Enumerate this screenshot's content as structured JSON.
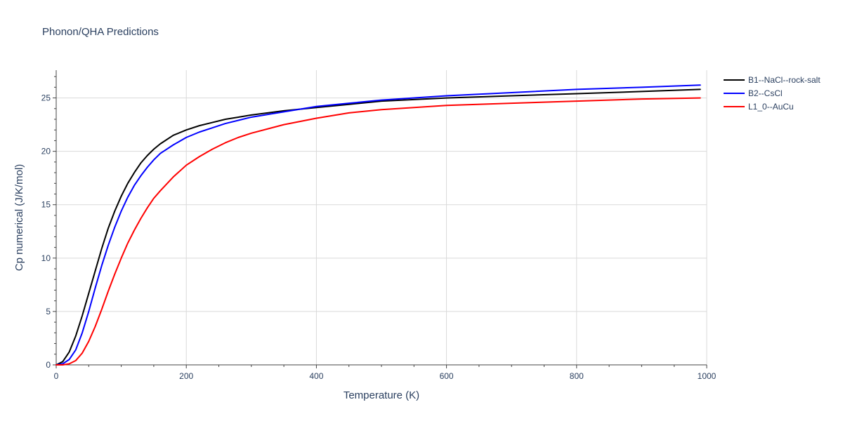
{
  "chart_data": {
    "type": "line",
    "title": "Phonon/QHA Predictions",
    "xlabel": "Temperature (K)",
    "ylabel": "Cp numerical (J/K/mol)",
    "xlim": [
      0,
      1000
    ],
    "ylim": [
      0,
      27.6
    ],
    "x_ticks": [
      0,
      200,
      400,
      600,
      800,
      1000
    ],
    "y_ticks": [
      0,
      5,
      10,
      15,
      20,
      25
    ],
    "grid": true,
    "legend_position": "top-right",
    "series": [
      {
        "name": "B1--NaCl--rock-salt",
        "color": "#000000",
        "x": [
          0,
          10,
          20,
          30,
          40,
          50,
          60,
          70,
          80,
          90,
          100,
          110,
          120,
          130,
          140,
          150,
          160,
          180,
          200,
          220,
          240,
          260,
          280,
          300,
          350,
          400,
          450,
          500,
          600,
          700,
          800,
          900,
          990
        ],
        "y": [
          0,
          0.3,
          1.2,
          2.7,
          4.6,
          6.7,
          8.8,
          10.9,
          12.8,
          14.4,
          15.8,
          17.0,
          18.0,
          18.9,
          19.6,
          20.2,
          20.7,
          21.5,
          22.0,
          22.4,
          22.7,
          23.0,
          23.2,
          23.4,
          23.8,
          24.1,
          24.4,
          24.7,
          25.0,
          25.2,
          25.4,
          25.6,
          25.8
        ]
      },
      {
        "name": "B2--CsCl",
        "color": "#0000ff",
        "x": [
          0,
          10,
          20,
          30,
          40,
          50,
          60,
          70,
          80,
          90,
          100,
          110,
          120,
          130,
          140,
          150,
          160,
          180,
          200,
          220,
          240,
          260,
          280,
          300,
          350,
          400,
          450,
          500,
          600,
          700,
          800,
          900,
          990
        ],
        "y": [
          0,
          0.1,
          0.5,
          1.4,
          3.0,
          5.0,
          7.2,
          9.3,
          11.2,
          12.9,
          14.4,
          15.7,
          16.8,
          17.7,
          18.5,
          19.2,
          19.8,
          20.6,
          21.3,
          21.8,
          22.2,
          22.6,
          22.9,
          23.2,
          23.7,
          24.2,
          24.5,
          24.8,
          25.2,
          25.5,
          25.8,
          26.0,
          26.2
        ]
      },
      {
        "name": "L1_0--AuCu",
        "color": "#ff0000",
        "x": [
          0,
          10,
          20,
          30,
          40,
          50,
          60,
          70,
          80,
          90,
          100,
          110,
          120,
          130,
          140,
          150,
          160,
          180,
          200,
          220,
          240,
          260,
          280,
          300,
          350,
          400,
          450,
          500,
          600,
          700,
          800,
          900,
          990
        ],
        "y": [
          0,
          0.0,
          0.1,
          0.4,
          1.1,
          2.2,
          3.6,
          5.2,
          6.9,
          8.5,
          10.0,
          11.4,
          12.6,
          13.7,
          14.7,
          15.6,
          16.3,
          17.6,
          18.7,
          19.5,
          20.2,
          20.8,
          21.3,
          21.7,
          22.5,
          23.1,
          23.6,
          23.9,
          24.3,
          24.5,
          24.7,
          24.9,
          25.0
        ]
      }
    ]
  }
}
